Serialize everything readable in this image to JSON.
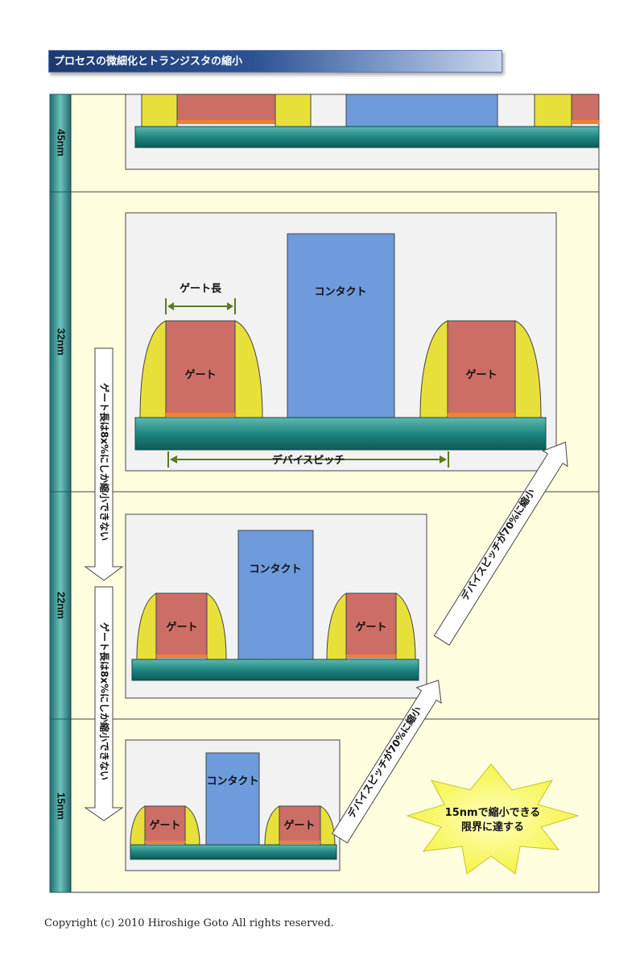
{
  "title": "プロセスの微細化とトランジスタの縮小",
  "nodes": [
    "45nm",
    "32nm",
    "22nm",
    "15nm"
  ],
  "labels": {
    "gate": "ゲート",
    "contact": "コンタクト",
    "gate_length": "ゲート長",
    "device_pitch": "デバイスピッチ"
  },
  "arrows": {
    "gate_shrink": "ゲート長は8x%にしか縮小できない",
    "pitch_shrink": "デバイスピッチが70%に縮小"
  },
  "starburst": [
    "15nmで縮小できる",
    "限界に達する"
  ],
  "footer": "Copyright (c) 2010 Hiroshige Goto All rights reserved.",
  "colors": {
    "band": "#2e8b8b",
    "panel_bg": "#ffffe0",
    "gate": "#cd6e66",
    "spacer": "#e8e03a",
    "contact": "#6d9bdc",
    "substrate": "#2a8f8a",
    "liner": "#f08030",
    "dimension_line": "#5a7a1e",
    "star": "#fafa60"
  }
}
